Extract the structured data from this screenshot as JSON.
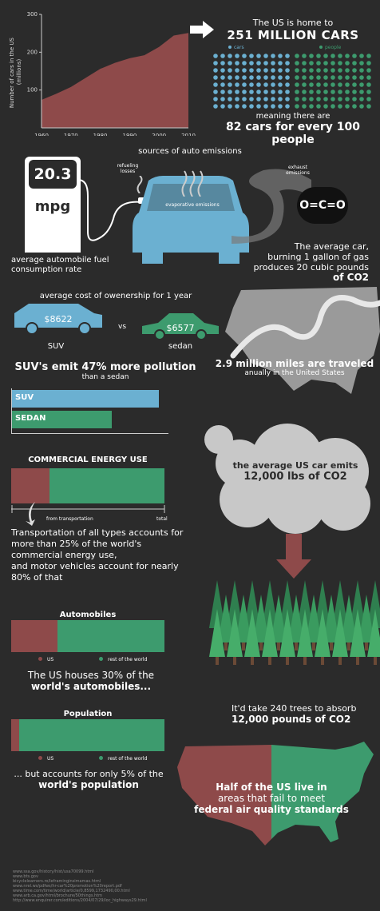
{
  "chart_data": [
    {
      "type": "area",
      "title": "",
      "xlabel": "",
      "ylabel": "Number of cars in the US (millions)",
      "x": [
        1960,
        1965,
        1970,
        1975,
        1980,
        1985,
        1990,
        1995,
        2000,
        2005,
        2010
      ],
      "y": [
        74,
        90,
        108,
        132,
        156,
        172,
        184,
        192,
        214,
        244,
        251
      ],
      "x_ticks": [
        1960,
        1970,
        1980,
        1990,
        2000,
        2010
      ],
      "y_ticks": [
        100,
        200,
        300
      ],
      "ylim": [
        0,
        300
      ],
      "xlim": [
        1960,
        2010
      ]
    },
    {
      "type": "bar",
      "categories": [
        "SUV",
        "SEDAN"
      ],
      "values": [
        147,
        100
      ],
      "colors": [
        "#6bb0d1",
        "#3d9b6e"
      ]
    },
    {
      "type": "bar",
      "title": "COMMERCIAL ENERGY USE",
      "categories": [
        "from transportation",
        "total"
      ],
      "values": [
        25,
        100
      ],
      "colors": [
        "#8e4a4a",
        "#3d9b6e"
      ]
    },
    {
      "type": "bar",
      "title": "Automobiles",
      "series": [
        {
          "name": "US",
          "values": [
            30
          ]
        },
        {
          "name": "rest of the world",
          "values": [
            70
          ]
        }
      ],
      "colors": [
        "#8e4a4a",
        "#3d9b6e"
      ]
    },
    {
      "type": "bar",
      "title": "Population",
      "series": [
        {
          "name": "US",
          "values": [
            5
          ]
        },
        {
          "name": "rest of the world",
          "values": [
            95
          ]
        }
      ],
      "colors": [
        "#8e4a4a",
        "#3d9b6e"
      ]
    }
  ],
  "colors": {
    "bg": "#2b2b2b",
    "red": "#8e4a4a",
    "green": "#3d9b6e",
    "blue": "#6bb0d1"
  },
  "cars": {
    "line1": "The US is home to",
    "line2": "251 MILLION CARS",
    "legend_cars": "cars",
    "legend_people": "people",
    "meaning": "meaning there are",
    "ratio": "82 cars for every 100 people"
  },
  "emissions": {
    "title": "sources of auto emissions",
    "mpg_value": "20.3",
    "mpg_unit": "mpg",
    "mpg_caption": "average automobile fuel consumption rate",
    "refuel": "refueling losses",
    "evap": "evaporative emissions",
    "exhaust": "exhaust emissions",
    "co2_formula": "O=C=O",
    "gallon_line1": "The average car,",
    "gallon_line2": "burning 1 gallon of gas",
    "gallon_line3": "produces 20 cubic pounds",
    "gallon_line4": "of CO2"
  },
  "ownership": {
    "title": "average cost of owenership for 1 year",
    "suv_price": "$8622",
    "sedan_price": "$6577",
    "vs": "vs",
    "suv_label": "SUV",
    "sedan_label": "sedan",
    "miles_line1": "2.9 million miles are traveled",
    "miles_line2": "anually in the United States",
    "suv_pollution": "SUV's emit 47% more pollution",
    "than_sedan": "than a sedan",
    "bar_suv": "SUV",
    "bar_sedan": "SEDAN"
  },
  "energy": {
    "title": "COMMERCIAL ENERGY USE",
    "from_transport": "from transportation",
    "total": "total",
    "p1": "Transportation of all types accounts for",
    "p2": "more than 25% of the world's",
    "p3": "commercial energy use,",
    "p4": "and motor vehicles account for nearly",
    "p5": "80% of that",
    "cloud_line1": "the average US car emits",
    "cloud_line2": "12,000 lbs of CO2"
  },
  "automobiles": {
    "title": "Automobiles",
    "legend_us": "US",
    "legend_rest": "rest of the world",
    "caption1": "The US houses 30% of the",
    "caption2": "world's automobiles..."
  },
  "population": {
    "title": "Population",
    "legend_us": "US",
    "legend_rest": "rest of the world",
    "caption1": "... but accounts for only 5% of the",
    "caption2": "world's population"
  },
  "trees": {
    "line1": "It'd take 240 trees to absorb",
    "line2": "12,000 pounds of CO2"
  },
  "airquality": {
    "line1": "Half of the US live in",
    "line2": "areas that fail to meet",
    "line3": "federal air quality standards"
  },
  "sources": [
    "www.ssa.gov/history/hist/usa70099.html",
    "www.bts.gov",
    "bicyclelearners.ro/leframinginsimamas.html",
    "www.nrel.ws/pdfws/hr-car%20promotion%20report.pdf",
    "www.time.com/time/world/article/0,8599,1732490,00.html",
    "www.arb.ca.gov/html/brochure/50things.htm",
    "http://www.enquirer.com/editions/2004/07/29/loc_highways29.html"
  ]
}
